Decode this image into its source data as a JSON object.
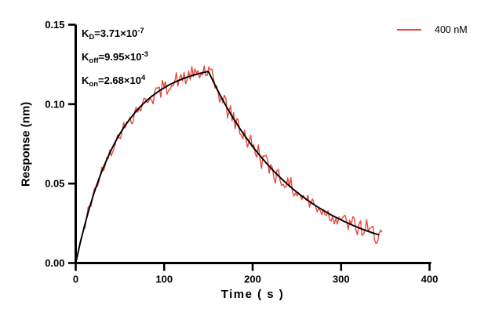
{
  "figure": {
    "background": "#ffffff",
    "axis_color": "#000000"
  },
  "legend": {
    "label": "400 nM",
    "line_color": "#e8483e"
  },
  "annotation_lines": [
    {
      "k": "K",
      "sub": "D",
      "eq": "=3.71×10",
      "exp": "-7"
    },
    {
      "k": "K",
      "sub": "off",
      "eq": "=9.95×10",
      "exp": "-3"
    },
    {
      "k": "K",
      "sub": "on",
      "eq": "=2.68×10",
      "exp": "4"
    }
  ],
  "axes": {
    "x": {
      "label": "Time ( s )",
      "ticks": [
        "0",
        "100",
        "200",
        "300",
        "400"
      ],
      "tick_values": [
        0,
        100,
        200,
        300,
        400
      ],
      "range": [
        0,
        400
      ]
    },
    "y": {
      "label": "Response (nm)",
      "ticks": [
        "0.00",
        "0.05",
        "0.10",
        "0.15"
      ],
      "tick_values": [
        0,
        0.05,
        0.1,
        0.15
      ],
      "range": [
        0,
        0.15
      ]
    }
  },
  "chart_data": {
    "type": "line",
    "title": "",
    "xlabel": "Time ( s )",
    "ylabel": "Response (nm)",
    "xlim": [
      0,
      400
    ],
    "ylim": [
      0,
      0.15
    ],
    "grid": false,
    "legend_position": "top-right",
    "kinetics": {
      "KD": 3.71e-07,
      "koff": 0.00995,
      "kon": 26800.0,
      "association_end_s": 150,
      "trace_end_s": 347,
      "peak_response_nm": 0.1206
    },
    "series": [
      {
        "name": "400 nM",
        "role": "measured",
        "color": "#e8483e",
        "line_width": 1.4,
        "generator": {
          "Req": 0.1263,
          "kobs": 0.02067,
          "koff": 0.00995,
          "t_assoc_end": 150,
          "R_dissoc_start": 0.1206,
          "t_end": 347,
          "step_s": 1.75,
          "noise_base": 0.0022,
          "noise_grow": 0.0032,
          "wave_amp": 0.0017,
          "seed": 42
        }
      },
      {
        "name": "Fit",
        "role": "fit",
        "color": "#000000",
        "line_width": 1.9,
        "x": [
          0,
          5,
          10,
          15,
          20,
          25,
          30,
          35,
          40,
          45,
          50,
          55,
          60,
          65,
          70,
          75,
          80,
          85,
          90,
          95,
          100,
          105,
          110,
          115,
          120,
          125,
          130,
          135,
          140,
          145,
          150,
          155,
          160,
          165,
          170,
          175,
          180,
          185,
          190,
          195,
          200,
          205,
          210,
          215,
          220,
          225,
          230,
          235,
          240,
          245,
          250,
          255,
          260,
          265,
          270,
          275,
          280,
          285,
          290,
          295,
          300,
          305,
          310,
          315,
          320,
          325,
          330,
          335,
          340,
          343
        ],
        "y": [
          0,
          0.0124,
          0.0236,
          0.0337,
          0.0428,
          0.051,
          0.0584,
          0.065,
          0.071,
          0.0765,
          0.0814,
          0.0858,
          0.0897,
          0.0933,
          0.0966,
          0.0995,
          0.1021,
          0.1045,
          0.1066,
          0.1086,
          0.1103,
          0.1119,
          0.1133,
          0.1146,
          0.1157,
          0.1168,
          0.1177,
          0.1185,
          0.1193,
          0.12,
          0.1206,
          0.1148,
          0.1092,
          0.1039,
          0.0988,
          0.094,
          0.0895,
          0.0851,
          0.081,
          0.0771,
          0.0733,
          0.0698,
          0.0664,
          0.0632,
          0.0601,
          0.0572,
          0.0544,
          0.0518,
          0.0493,
          0.0469,
          0.0446,
          0.0424,
          0.0404,
          0.0384,
          0.0365,
          0.0348,
          0.0331,
          0.0315,
          0.0299,
          0.0285,
          0.0271,
          0.0258,
          0.0245,
          0.0233,
          0.0222,
          0.0211,
          0.0201,
          0.0191,
          0.0182,
          0.0177
        ]
      }
    ]
  }
}
